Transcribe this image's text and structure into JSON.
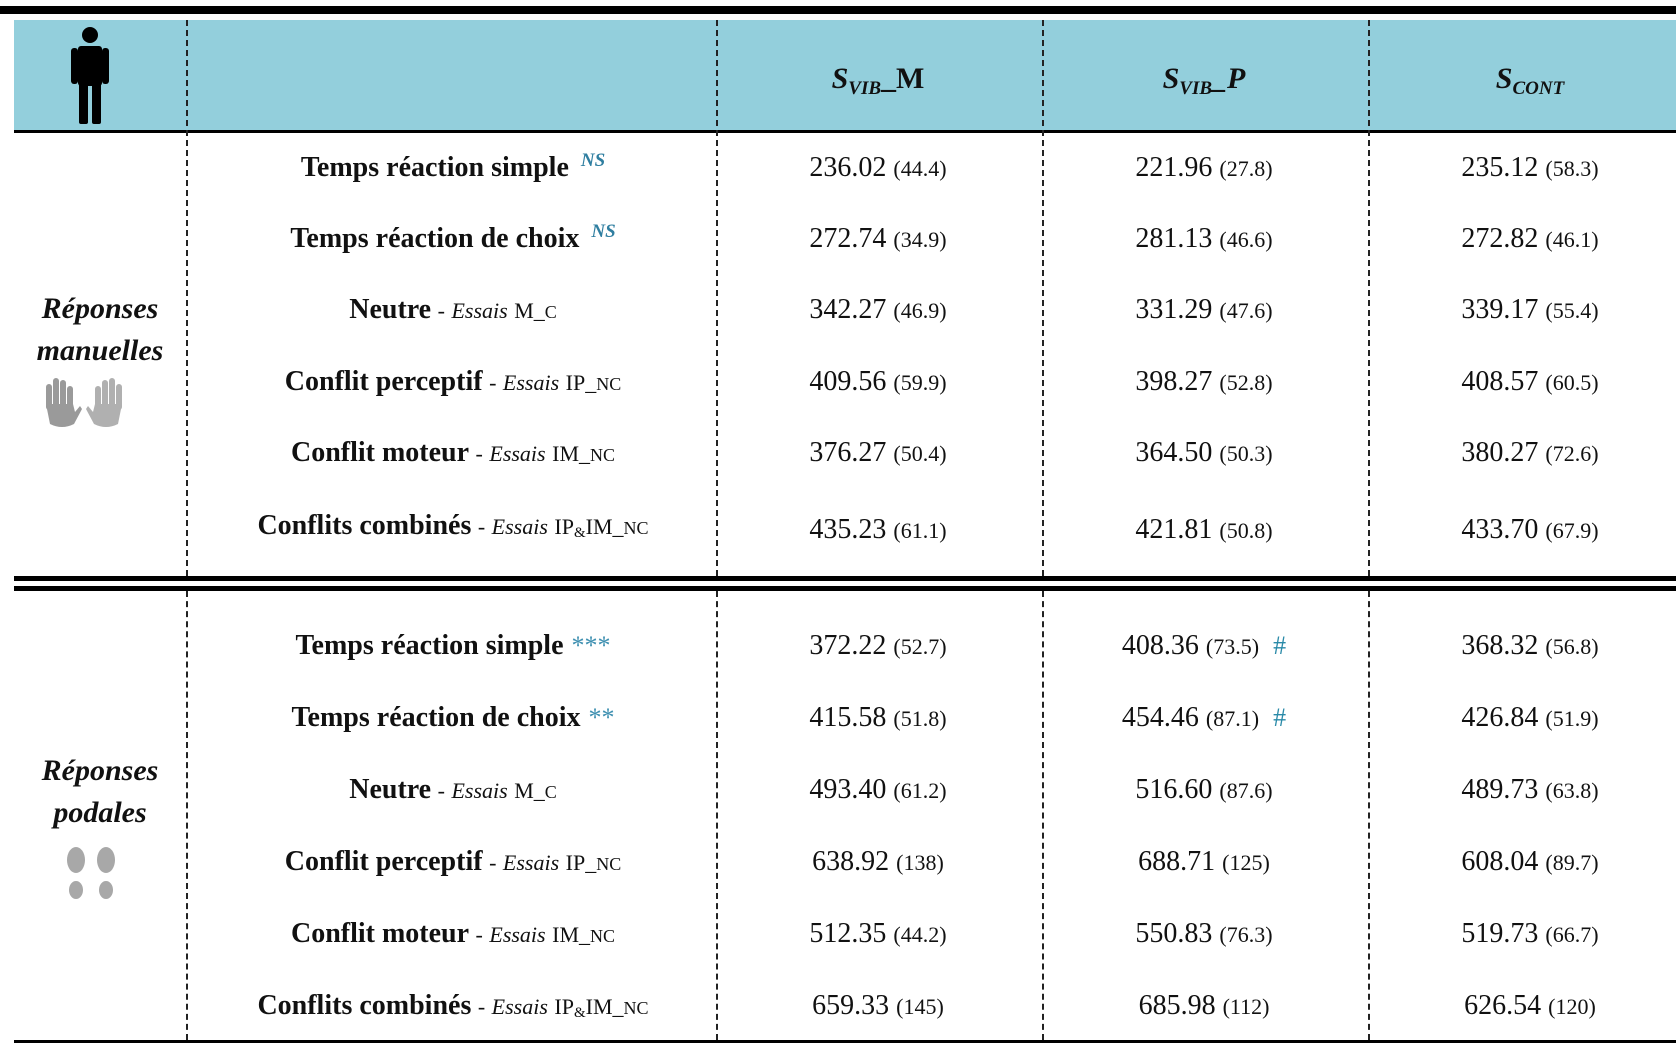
{
  "header": {
    "columns": [
      {
        "base": "S",
        "sub": "VIB",
        "suffix": "_M"
      },
      {
        "base": "S",
        "sub": "VIB",
        "suffix": "_P"
      },
      {
        "base": "S",
        "sub": "CONT",
        "suffix": ""
      }
    ],
    "person_icon": "standing-person-icon"
  },
  "groups": [
    {
      "label_line1": "Réponses",
      "label_line2": "manuelles",
      "icon": "hands-icon",
      "rows": [
        {
          "main": "Temps réaction simple",
          "sig": "NS",
          "sig_type": "ns",
          "essai": "",
          "code": "",
          "cells": [
            {
              "v": "236.02",
              "sd": "(44.4)"
            },
            {
              "v": "221.96",
              "sd": "(27.8)"
            },
            {
              "v": "235.12",
              "sd": "(58.3)"
            }
          ]
        },
        {
          "main": "Temps réaction de choix",
          "sig": "NS",
          "sig_type": "ns",
          "essai": "",
          "code": "",
          "cells": [
            {
              "v": "272.74",
              "sd": "(34.9)"
            },
            {
              "v": "281.13",
              "sd": "(46.6)"
            },
            {
              "v": "272.82",
              "sd": "(46.1)"
            }
          ]
        },
        {
          "main": "Neutre",
          "sep": "-",
          "essai": "Essais",
          "code_a": "M_",
          "code_b": "C",
          "cells": [
            {
              "v": "342.27",
              "sd": "(46.9)"
            },
            {
              "v": "331.29",
              "sd": "(47.6)"
            },
            {
              "v": "339.17",
              "sd": "(55.4)"
            }
          ]
        },
        {
          "main": "Conflit perceptif",
          "sep": "-",
          "essai": "Essais",
          "code_a": "IP_",
          "code_b": "NC",
          "cells": [
            {
              "v": "409.56",
              "sd": "(59.9)"
            },
            {
              "v": "398.27",
              "sd": "(52.8)"
            },
            {
              "v": "408.57",
              "sd": "(60.5)"
            }
          ]
        },
        {
          "main": "Conflit moteur",
          "sep": "-",
          "essai": "Essais",
          "code_a": "IM_",
          "code_b": "NC",
          "cells": [
            {
              "v": "376.27",
              "sd": "(50.4)"
            },
            {
              "v": "364.50",
              "sd": "(50.3)"
            },
            {
              "v": "380.27",
              "sd": "(72.6)"
            }
          ]
        },
        {
          "main": "Conflits combinés",
          "sep": "-",
          "essai": "Essais",
          "code_a": "IP",
          "code_amp": "&",
          "code_c": "IM_",
          "code_b": "NC",
          "cells": [
            {
              "v": "435.23",
              "sd": "(61.1)"
            },
            {
              "v": "421.81",
              "sd": "(50.8)"
            },
            {
              "v": "433.70",
              "sd": "(67.9)"
            }
          ]
        }
      ]
    },
    {
      "label_line1": "Réponses",
      "label_line2": "podales",
      "icon": "footprints-icon",
      "rows": [
        {
          "main": "Temps réaction simple",
          "sig": "***",
          "sig_type": "star",
          "cells": [
            {
              "v": "372.22",
              "sd": "(52.7)"
            },
            {
              "v": "408.36",
              "sd": "(73.5)",
              "mark": "#"
            },
            {
              "v": "368.32",
              "sd": "(56.8)"
            }
          ]
        },
        {
          "main": "Temps réaction de choix",
          "sig": "**",
          "sig_type": "star",
          "cells": [
            {
              "v": "415.58",
              "sd": "(51.8)"
            },
            {
              "v": "454.46",
              "sd": "(87.1)",
              "mark": "#"
            },
            {
              "v": "426.84",
              "sd": "(51.9)"
            }
          ]
        },
        {
          "main": "Neutre",
          "sep": "-",
          "essai": "Essais",
          "code_a": "M_",
          "code_b": "C",
          "cells": [
            {
              "v": "493.40",
              "sd": "(61.2)"
            },
            {
              "v": "516.60",
              "sd": "(87.6)"
            },
            {
              "v": "489.73",
              "sd": "(63.8)"
            }
          ]
        },
        {
          "main": "Conflit perceptif",
          "sep": "-",
          "essai": "Essais",
          "code_a": "IP_",
          "code_b": "NC",
          "cells": [
            {
              "v": "638.92",
              "sd": "(138)"
            },
            {
              "v": "688.71",
              "sd": "(125)"
            },
            {
              "v": "608.04",
              "sd": "(89.7)"
            }
          ]
        },
        {
          "main": "Conflit moteur",
          "sep": "-",
          "essai": "Essais",
          "code_a": "IM_",
          "code_b": "NC",
          "cells": [
            {
              "v": "512.35",
              "sd": "(44.2)"
            },
            {
              "v": "550.83",
              "sd": "(76.3)"
            },
            {
              "v": "519.73",
              "sd": "(66.7)"
            }
          ]
        },
        {
          "main": "Conflits combinés",
          "sep": "-",
          "essai": "Essais",
          "code_a": "IP",
          "code_amp": "&",
          "code_c": "IM_",
          "code_b": "NC",
          "cells": [
            {
              "v": "659.33",
              "sd": "(145)"
            },
            {
              "v": "685.98",
              "sd": "(112)"
            },
            {
              "v": "626.54",
              "sd": "(120)"
            }
          ]
        }
      ]
    }
  ]
}
